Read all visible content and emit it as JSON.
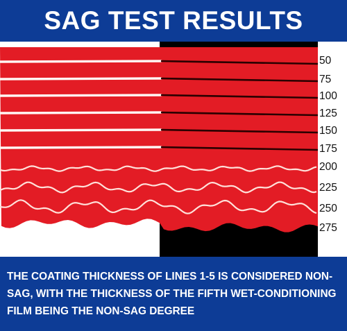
{
  "title": "SAG TEST RESULTS",
  "thickness_labels": [
    "50",
    "75",
    "100",
    "125",
    "150",
    "175",
    "200",
    "225",
    "250",
    "275"
  ],
  "footer_text": "THE COATING THICKNESS OF LINES 1-5 IS CONSIDERED NON-SAG, WITH THE THICKNESS OF THE FIFTH WET-CONDITIONING FILM BEING THE NON-SAG DEGREE",
  "colors": {
    "banner": "#0d3c96",
    "coating": "#e31c25",
    "coating_shadow": "#b5141c",
    "substrate_dark": "#000000",
    "substrate_light": "#ffffff"
  }
}
